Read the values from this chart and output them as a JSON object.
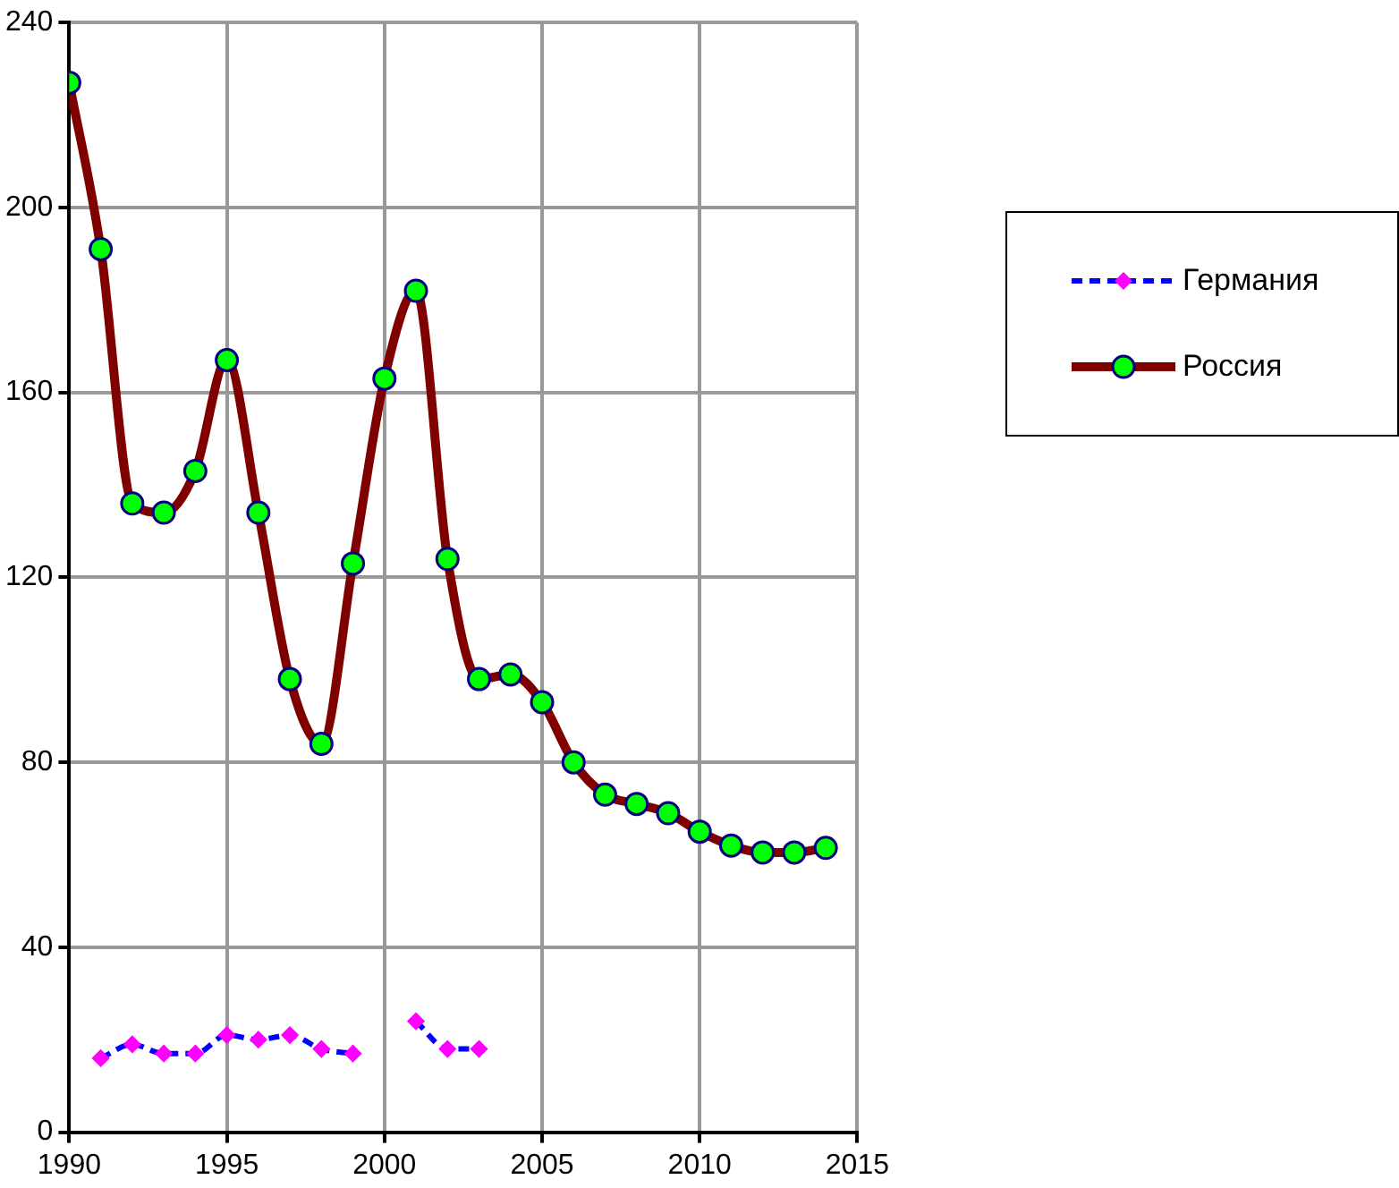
{
  "chart_data": {
    "type": "line",
    "x": [
      1990,
      1991,
      1992,
      1993,
      1994,
      1995,
      1996,
      1997,
      1998,
      1999,
      2000,
      2001,
      2002,
      2003,
      2004,
      2005,
      2006,
      2007,
      2008,
      2009,
      2010,
      2011,
      2012,
      2013,
      2014
    ],
    "series": [
      {
        "name": "Германия",
        "color": "#0000ff",
        "marker": "diamond",
        "line_style": "dashed",
        "values": [
          null,
          16,
          19,
          17,
          17,
          21,
          20,
          21,
          18,
          17,
          null,
          24,
          18,
          18,
          null,
          null,
          null,
          null,
          null,
          null,
          null,
          null,
          null,
          null,
          null
        ]
      },
      {
        "name": "Россия",
        "color": "#800000",
        "marker": "circle",
        "line_style": "solid",
        "values": [
          227,
          191,
          136,
          134,
          143,
          167,
          134,
          98,
          84,
          123,
          163,
          182,
          124,
          98,
          99,
          93,
          80,
          73,
          71,
          69,
          65,
          62,
          60.5,
          60.5,
          61.5
        ]
      }
    ],
    "xlim": [
      1990,
      2015
    ],
    "xticks": [
      1990,
      1995,
      2000,
      2005,
      2010,
      2015
    ],
    "ylim": [
      0,
      240
    ],
    "yticks": [
      0,
      40,
      80,
      120,
      160,
      200,
      240
    ],
    "grid": true,
    "legend": "right"
  }
}
